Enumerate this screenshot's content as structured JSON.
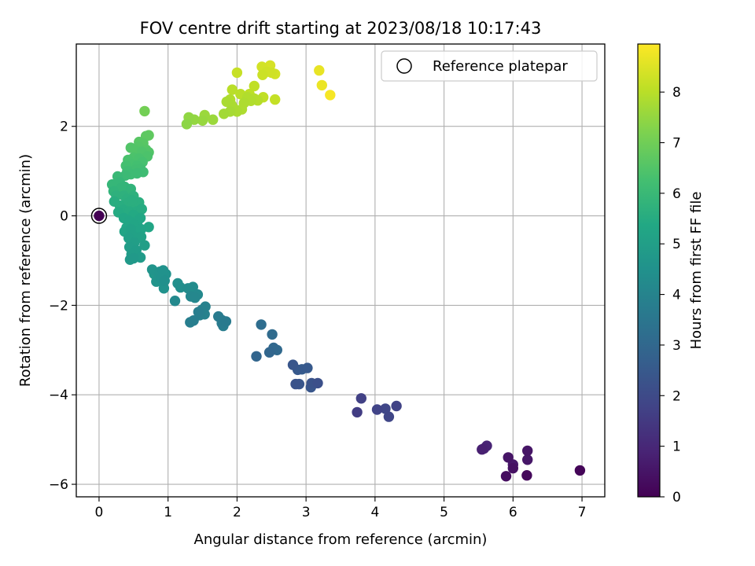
{
  "chart_data": {
    "type": "scatter",
    "title": "FOV centre drift starting at 2023/08/18 10:17:43",
    "xlabel": "Angular distance from reference (arcmin)",
    "ylabel": "Rotation from reference (arcmin)",
    "colorbar_label": "Hours from first FF file",
    "xlim": [
      -0.33,
      7.33
    ],
    "ylim": [
      -6.28,
      3.84
    ],
    "x_ticks": [
      "0",
      "1",
      "2",
      "3",
      "4",
      "5",
      "6",
      "7"
    ],
    "y_ticks": [
      "2",
      "0",
      "−2",
      "−4",
      "−6"
    ],
    "colorbar_ticks": [
      "0",
      "1",
      "2",
      "3",
      "4",
      "5",
      "6",
      "7",
      "8"
    ],
    "colorbar_range": [
      0,
      8.95
    ],
    "colormap": "viridis",
    "grid": true,
    "legend": {
      "position": "top-right",
      "label": "Reference platepar"
    },
    "reference_point": {
      "x": 0,
      "y": 0,
      "hours": 0
    },
    "points": [
      [
        6.97,
        -5.69,
        0.1
      ],
      [
        6.2,
        -5.8,
        0.2
      ],
      [
        5.9,
        -5.82,
        0.3
      ],
      [
        6.0,
        -5.64,
        0.4
      ],
      [
        5.93,
        -5.4,
        0.5
      ],
      [
        6.0,
        -5.56,
        0.6
      ],
      [
        6.21,
        -5.45,
        0.55
      ],
      [
        6.21,
        -5.25,
        0.5
      ],
      [
        5.55,
        -5.22,
        0.8
      ],
      [
        5.62,
        -5.14,
        0.9
      ],
      [
        5.58,
        -5.2,
        0.85
      ],
      [
        3.74,
        -4.39,
        1.6
      ],
      [
        3.8,
        -4.08,
        1.7
      ],
      [
        4.03,
        -4.33,
        1.8
      ],
      [
        4.15,
        -4.31,
        1.9
      ],
      [
        4.2,
        -4.49,
        1.85
      ],
      [
        4.31,
        -4.25,
        1.75
      ],
      [
        2.81,
        -3.33,
        2.4
      ],
      [
        2.88,
        -3.44,
        2.5
      ],
      [
        2.94,
        -3.43,
        2.6
      ],
      [
        3.02,
        -3.4,
        2.5
      ],
      [
        2.85,
        -3.76,
        2.3
      ],
      [
        2.9,
        -3.76,
        2.4
      ],
      [
        3.07,
        -3.83,
        2.4
      ],
      [
        3.08,
        -3.74,
        2.3
      ],
      [
        3.17,
        -3.74,
        2.2
      ],
      [
        2.28,
        -3.14,
        2.9
      ],
      [
        2.47,
        -3.05,
        2.95
      ],
      [
        2.53,
        -2.95,
        3.0
      ],
      [
        2.58,
        -3.0,
        3.05
      ],
      [
        2.51,
        -2.65,
        3.1
      ],
      [
        2.35,
        -2.43,
        3.2
      ],
      [
        1.32,
        -2.38,
        3.8
      ],
      [
        1.37,
        -2.34,
        3.8
      ],
      [
        1.46,
        -2.22,
        3.85
      ],
      [
        1.53,
        -2.2,
        3.9
      ],
      [
        1.49,
        -2.1,
        3.95
      ],
      [
        1.54,
        -2.03,
        3.9
      ],
      [
        1.44,
        -2.15,
        3.8
      ],
      [
        1.73,
        -2.25,
        3.7
      ],
      [
        1.78,
        -2.33,
        3.7
      ],
      [
        1.8,
        -2.46,
        3.75
      ],
      [
        1.78,
        -2.4,
        3.7
      ],
      [
        1.84,
        -2.36,
        3.65
      ],
      [
        1.33,
        -1.8,
        4.1
      ],
      [
        1.39,
        -1.83,
        4.1
      ],
      [
        1.43,
        -1.76,
        4.2
      ],
      [
        1.36,
        -1.59,
        4.3
      ],
      [
        1.29,
        -1.62,
        4.3
      ],
      [
        1.18,
        -1.6,
        4.35
      ],
      [
        1.14,
        -1.51,
        4.4
      ],
      [
        1.1,
        -1.9,
        4.2
      ],
      [
        0.94,
        -1.62,
        4.5
      ],
      [
        0.97,
        -1.3,
        4.5
      ],
      [
        0.93,
        -1.22,
        4.5
      ],
      [
        0.87,
        -1.34,
        4.55
      ],
      [
        0.83,
        -1.47,
        4.6
      ],
      [
        0.9,
        -1.4,
        4.5
      ],
      [
        0.77,
        -1.2,
        4.6
      ],
      [
        0.8,
        -1.3,
        4.7
      ],
      [
        0.95,
        -1.45,
        4.45
      ],
      [
        0.88,
        -1.25,
        4.55
      ],
      [
        0.45,
        -0.98,
        4.8
      ],
      [
        0.5,
        -0.95,
        4.8
      ],
      [
        0.6,
        -0.93,
        4.85
      ],
      [
        0.54,
        -0.77,
        4.9
      ],
      [
        0.44,
        -0.7,
        4.95
      ],
      [
        0.47,
        -0.86,
        4.9
      ],
      [
        0.66,
        -0.66,
        5.0
      ],
      [
        0.51,
        -0.6,
        5.0
      ],
      [
        0.43,
        -0.5,
        5.05
      ],
      [
        0.54,
        -0.52,
        5.1
      ],
      [
        0.61,
        -0.47,
        5.1
      ],
      [
        0.48,
        -0.44,
        5.1
      ],
      [
        0.46,
        -0.3,
        5.15
      ],
      [
        0.37,
        -0.35,
        5.2
      ],
      [
        0.57,
        -0.37,
        5.2
      ],
      [
        0.61,
        -0.3,
        5.2
      ],
      [
        0.51,
        -0.2,
        5.25
      ],
      [
        0.4,
        -0.26,
        5.3
      ],
      [
        0.44,
        -0.12,
        5.3
      ],
      [
        0.56,
        -0.12,
        5.3
      ],
      [
        0.72,
        -0.25,
        5.25
      ],
      [
        0.36,
        -0.05,
        5.35
      ],
      [
        0.6,
        -0.05,
        5.35
      ],
      [
        0.5,
        0.02,
        5.4
      ],
      [
        0.28,
        0.08,
        5.45
      ],
      [
        0.36,
        0.13,
        5.5
      ],
      [
        0.44,
        0.1,
        5.5
      ],
      [
        0.55,
        0.1,
        5.5
      ],
      [
        0.62,
        0.15,
        5.5
      ],
      [
        0.3,
        0.23,
        5.55
      ],
      [
        0.41,
        0.28,
        5.6
      ],
      [
        0.49,
        0.26,
        5.6
      ],
      [
        0.58,
        0.3,
        5.6
      ],
      [
        0.22,
        0.32,
        5.55
      ],
      [
        0.25,
        0.45,
        5.7
      ],
      [
        0.36,
        0.45,
        5.7
      ],
      [
        0.5,
        0.44,
        5.7
      ],
      [
        0.4,
        0.37,
        5.65
      ],
      [
        0.48,
        0.35,
        5.6
      ],
      [
        0.21,
        0.55,
        5.8
      ],
      [
        0.32,
        0.62,
        5.85
      ],
      [
        0.46,
        0.6,
        5.8
      ],
      [
        0.19,
        0.7,
        5.9
      ],
      [
        0.3,
        0.75,
        5.9
      ],
      [
        0.37,
        0.65,
        5.85
      ],
      [
        0.27,
        0.88,
        6.0
      ],
      [
        0.38,
        0.9,
        6.05
      ],
      [
        0.46,
        0.93,
        6.1
      ],
      [
        0.55,
        0.95,
        6.1
      ],
      [
        0.64,
        0.98,
        6.15
      ],
      [
        0.41,
        1.0,
        6.15
      ],
      [
        0.52,
        1.02,
        6.2
      ],
      [
        0.6,
        1.05,
        6.2
      ],
      [
        0.39,
        1.12,
        6.25
      ],
      [
        0.47,
        1.15,
        6.3
      ],
      [
        0.55,
        1.12,
        6.25
      ],
      [
        0.63,
        1.2,
        6.3
      ],
      [
        0.42,
        1.25,
        6.35
      ],
      [
        0.5,
        1.3,
        6.4
      ],
      [
        0.58,
        1.28,
        6.35
      ],
      [
        0.7,
        1.33,
        6.4
      ],
      [
        0.72,
        1.42,
        6.5
      ],
      [
        0.62,
        1.43,
        6.45
      ],
      [
        0.54,
        1.45,
        6.5
      ],
      [
        0.46,
        1.52,
        6.5
      ],
      [
        0.57,
        1.55,
        6.55
      ],
      [
        0.68,
        1.48,
        6.55
      ],
      [
        0.58,
        1.65,
        6.6
      ],
      [
        0.64,
        1.62,
        6.6
      ],
      [
        0.68,
        1.78,
        6.7
      ],
      [
        0.72,
        1.8,
        6.75
      ],
      [
        0.66,
        2.34,
        7.05
      ],
      [
        1.27,
        2.05,
        7.4
      ],
      [
        1.3,
        2.2,
        7.45
      ],
      [
        1.38,
        2.15,
        7.5
      ],
      [
        1.5,
        2.13,
        7.55
      ],
      [
        1.53,
        2.25,
        7.6
      ],
      [
        1.65,
        2.15,
        7.6
      ],
      [
        1.81,
        2.28,
        7.7
      ],
      [
        1.9,
        2.33,
        7.75
      ],
      [
        1.95,
        2.41,
        7.8
      ],
      [
        2.0,
        2.33,
        7.8
      ],
      [
        2.07,
        2.38,
        7.85
      ],
      [
        1.92,
        2.48,
        7.8
      ],
      [
        1.85,
        2.55,
        7.8
      ],
      [
        2.1,
        2.52,
        7.85
      ],
      [
        2.15,
        2.65,
        7.9
      ],
      [
        2.2,
        2.57,
        7.9
      ],
      [
        2.25,
        2.62,
        7.95
      ],
      [
        2.3,
        2.58,
        7.95
      ],
      [
        1.9,
        2.6,
        7.9
      ],
      [
        1.93,
        2.82,
        8.0
      ],
      [
        2.05,
        2.72,
        8.0
      ],
      [
        2.18,
        2.72,
        8.05
      ],
      [
        2.25,
        2.9,
        8.1
      ],
      [
        2.38,
        2.65,
        8.1
      ],
      [
        2.55,
        2.6,
        8.15
      ],
      [
        2.0,
        3.2,
        8.2
      ],
      [
        2.37,
        3.15,
        8.25
      ],
      [
        2.43,
        3.22,
        8.3
      ],
      [
        2.5,
        3.2,
        8.3
      ],
      [
        2.55,
        3.17,
        8.35
      ],
      [
        2.36,
        3.33,
        8.35
      ],
      [
        2.48,
        3.36,
        8.4
      ],
      [
        3.19,
        3.25,
        8.65
      ],
      [
        3.23,
        2.92,
        8.7
      ],
      [
        3.35,
        2.7,
        8.85
      ]
    ]
  }
}
